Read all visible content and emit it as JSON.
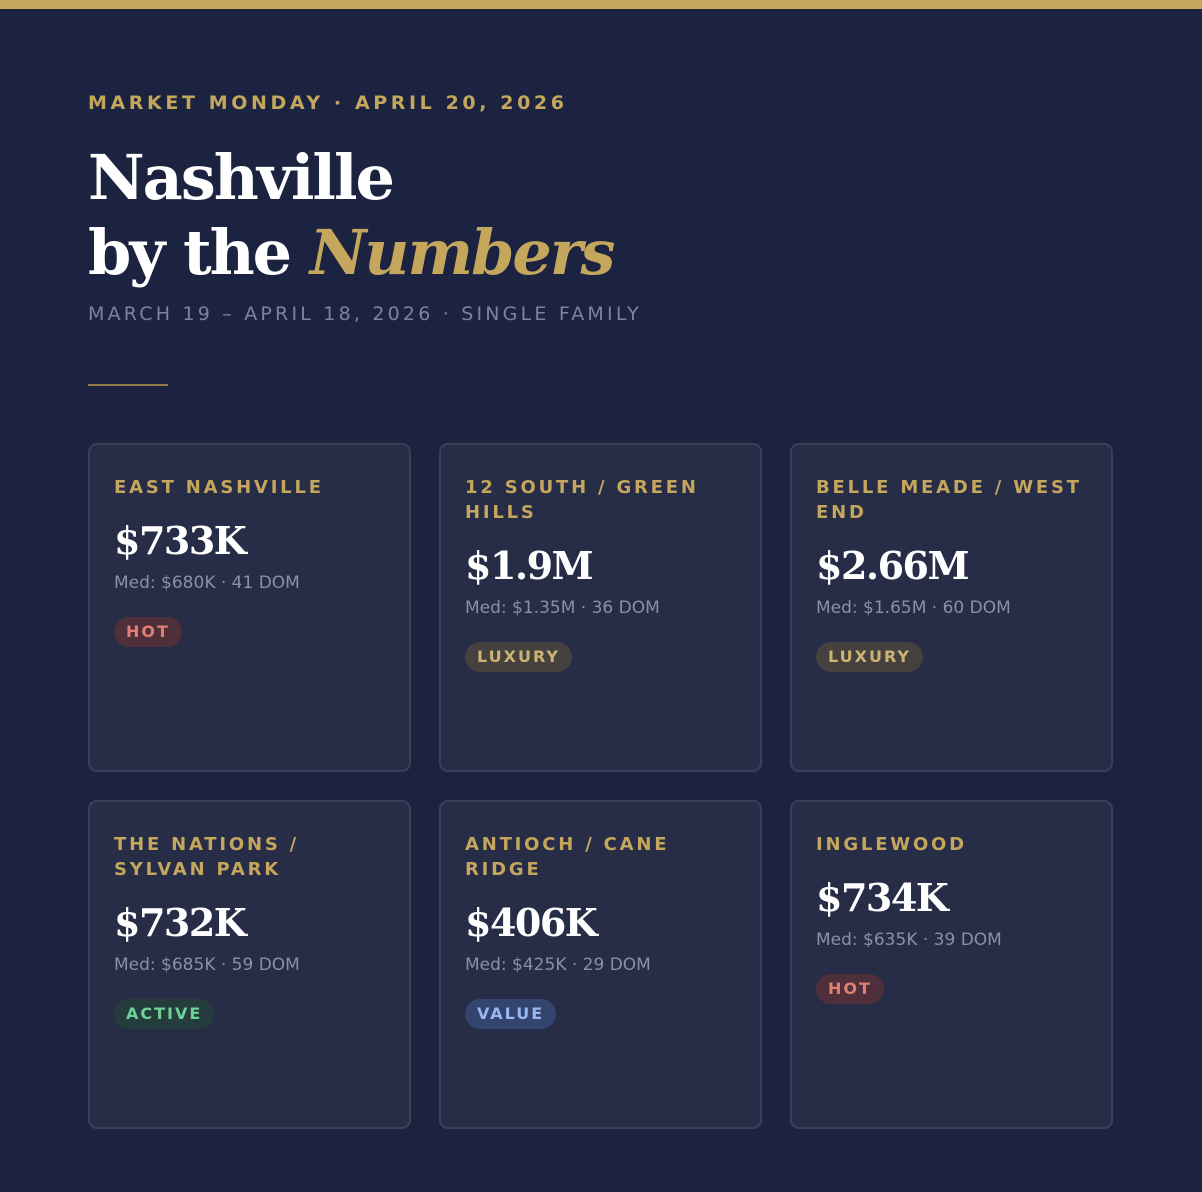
{
  "header": {
    "eyebrow": "MARKET MONDAY · APRIL 20, 2026",
    "title_line1": "Nashville",
    "title_line2_prefix": "by the ",
    "title_line2_accent": "Numbers",
    "subtitle": "MARCH 19 – APRIL 18, 2026 · SINGLE FAMILY"
  },
  "colors": {
    "background": "#1b2340",
    "gold": "#c4a65c",
    "card": "#272c47"
  },
  "neighborhoods": [
    {
      "area": "EAST NASHVILLE",
      "price": "$733K",
      "meta": "Med: $680K · 41 DOM",
      "badge": "HOT",
      "badge_type": "hot"
    },
    {
      "area": "12 SOUTH / GREEN HILLS",
      "price": "$1.9M",
      "meta": "Med: $1.35M · 36 DOM",
      "badge": "LUXURY",
      "badge_type": "luxury"
    },
    {
      "area": "BELLE MEADE / WEST END",
      "price": "$2.66M",
      "meta": "Med: $1.65M · 60 DOM",
      "badge": "LUXURY",
      "badge_type": "luxury"
    },
    {
      "area": "THE NATIONS / SYLVAN PARK",
      "price": "$732K",
      "meta": "Med: $685K · 59 DOM",
      "badge": "ACTIVE",
      "badge_type": "active"
    },
    {
      "area": "ANTIOCH / CANE RIDGE",
      "price": "$406K",
      "meta": "Med: $425K · 29 DOM",
      "badge": "VALUE",
      "badge_type": "value"
    },
    {
      "area": "INGLEWOOD",
      "price": "$734K",
      "meta": "Med: $635K · 39 DOM",
      "badge": "HOT",
      "badge_type": "hot"
    }
  ]
}
